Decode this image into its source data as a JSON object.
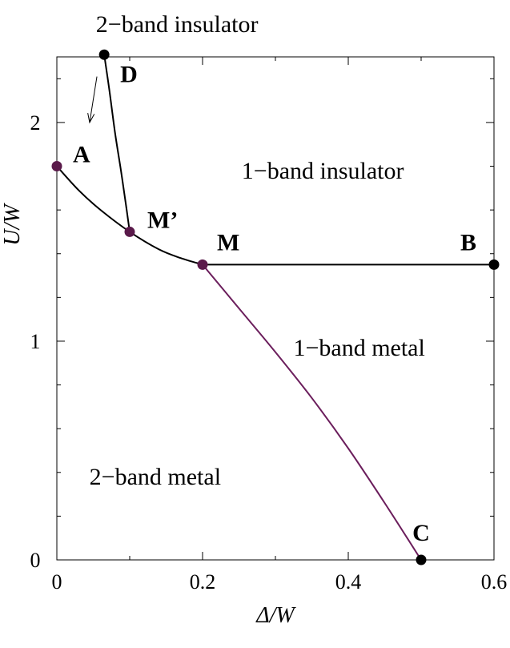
{
  "chart_data": {
    "type": "line",
    "title": "",
    "xlabel": "Δ/W",
    "ylabel": "U/W",
    "xlim": [
      0,
      0.6
    ],
    "ylim": [
      0,
      2.3
    ],
    "x_ticks": [
      0,
      0.2,
      0.4,
      0.6
    ],
    "x_tick_labels": [
      "0",
      "0.2",
      "0.4",
      "0.6"
    ],
    "x_minor_ticks": [
      0.1,
      0.3,
      0.5
    ],
    "y_ticks": [
      0,
      1,
      2
    ],
    "y_tick_labels": [
      "0",
      "1",
      "2"
    ],
    "y_minor_ticks": [
      0.2,
      0.4,
      0.6,
      0.8,
      1.2,
      1.4,
      1.6,
      1.8,
      2.2
    ],
    "grid": false,
    "colors": {
      "black": "#000000",
      "purple": "#5a1a4a",
      "purple_line": "#6b1e5c"
    },
    "series": [
      {
        "color": "black",
        "points": [
          [
            0,
            1.8
          ],
          [
            0.03,
            1.69
          ],
          [
            0.06,
            1.6
          ],
          [
            0.1,
            1.5
          ],
          [
            0.14,
            1.42
          ],
          [
            0.17,
            1.38
          ],
          [
            0.2,
            1.35
          ]
        ]
      },
      {
        "color": "black",
        "points": [
          [
            0.065,
            2.31
          ],
          [
            0.072,
            2.15
          ],
          [
            0.08,
            1.95
          ],
          [
            0.088,
            1.78
          ],
          [
            0.095,
            1.62
          ],
          [
            0.1,
            1.5
          ]
        ]
      },
      {
        "color": "black",
        "points": [
          [
            0.2,
            1.35
          ],
          [
            0.6,
            1.35
          ]
        ]
      },
      {
        "color": "purple_line",
        "points": [
          [
            0.2,
            1.35
          ],
          [
            0.25,
            1.15
          ],
          [
            0.3,
            0.95
          ],
          [
            0.35,
            0.74
          ],
          [
            0.4,
            0.51
          ],
          [
            0.45,
            0.26
          ],
          [
            0.5,
            0.0
          ]
        ]
      }
    ],
    "points": [
      {
        "label": "A",
        "x": 0,
        "y": 1.8,
        "color": "purple"
      },
      {
        "label": "D",
        "x": 0.065,
        "y": 2.31,
        "color": "black"
      },
      {
        "label": "M’",
        "x": 0.1,
        "y": 1.5,
        "color": "purple"
      },
      {
        "label": "M",
        "x": 0.2,
        "y": 1.35,
        "color": "purple"
      },
      {
        "label": "B",
        "x": 0.6,
        "y": 1.35,
        "color": "black"
      },
      {
        "label": "C",
        "x": 0.5,
        "y": 0,
        "color": "black"
      }
    ],
    "region_labels": [
      {
        "text": "1−band insulator",
        "x": 0.365,
        "y": 1.78
      },
      {
        "text": "1−band metal",
        "x": 0.415,
        "y": 0.97
      },
      {
        "text": "2−band metal",
        "x": 0.135,
        "y": 0.38
      }
    ],
    "annotations": [
      {
        "text": "2−band insulator",
        "x": 0.165,
        "y": 2.45,
        "arrow_from": [
          0.055,
          2.21
        ],
        "arrow_to": [
          0.045,
          2.0
        ]
      }
    ]
  }
}
